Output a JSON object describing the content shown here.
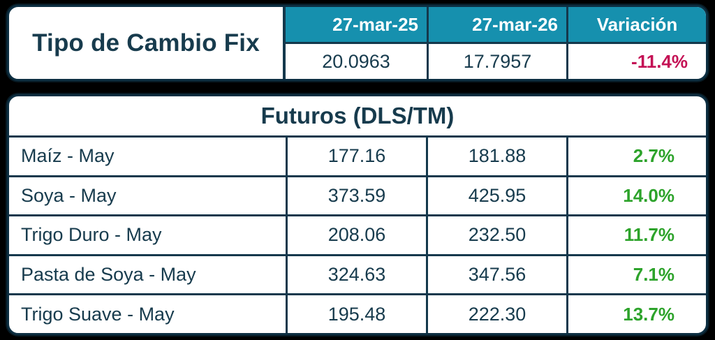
{
  "colors": {
    "background": "#000000",
    "card_border": "#0d2f42",
    "line": "#14384c",
    "teal_header": "#1690ae",
    "navy_text": "#173b4d",
    "positive_green": "#2da32b",
    "negative_crimson": "#c41155",
    "header_text": "#ffffff"
  },
  "chart_data": [
    {
      "type": "table",
      "title": "Tipo de Cambio Fix",
      "columns": [
        "27-mar-25",
        "27-mar-26",
        "Variación"
      ],
      "rows": [
        [
          "20.0963",
          "17.7957",
          "-11.4%"
        ]
      ]
    },
    {
      "type": "table",
      "title": "Futuros (DLS/TM)",
      "columns": [
        "",
        "27-mar-25",
        "27-mar-26",
        "Variación"
      ],
      "rows": [
        [
          "Maíz - May",
          "177.16",
          "181.88",
          "2.7%"
        ],
        [
          "Soya - May",
          "373.59",
          "425.95",
          "14.0%"
        ],
        [
          "Trigo Duro - May",
          "208.06",
          "232.50",
          "11.7%"
        ],
        [
          "Pasta de Soya - May",
          "324.63",
          "347.56",
          "7.1%"
        ],
        [
          "Trigo Suave - May",
          "195.48",
          "222.30",
          "13.7%"
        ]
      ]
    }
  ]
}
